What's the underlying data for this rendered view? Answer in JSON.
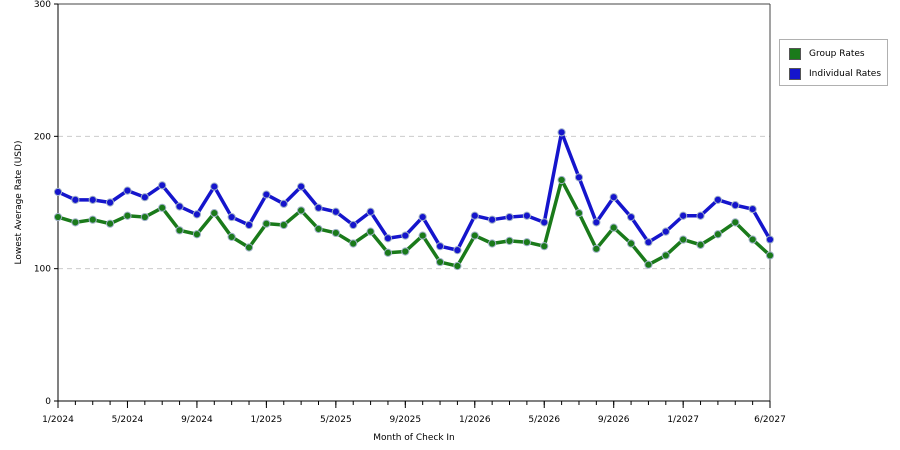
{
  "chart_data": {
    "type": "line",
    "title": "",
    "xlabel": "Month of Check In",
    "ylabel": "Lowest Average Rate (USD)",
    "ylim": [
      0,
      300
    ],
    "yticks": [
      0,
      100,
      200,
      300
    ],
    "xticks": [
      "1/2024",
      "5/2024",
      "9/2024",
      "1/2025",
      "5/2025",
      "9/2025",
      "1/2026",
      "5/2026",
      "9/2026",
      "1/2027",
      "6/2027"
    ],
    "grid": "horizontal dashed",
    "legend_position": "right",
    "categories": [
      "1/2024",
      "2/2024",
      "3/2024",
      "4/2024",
      "5/2024",
      "6/2024",
      "7/2024",
      "8/2024",
      "9/2024",
      "10/2024",
      "11/2024",
      "12/2024",
      "1/2025",
      "2/2025",
      "3/2025",
      "4/2025",
      "5/2025",
      "6/2025",
      "7/2025",
      "8/2025",
      "9/2025",
      "10/2025",
      "11/2025",
      "12/2025",
      "1/2026",
      "2/2026",
      "3/2026",
      "4/2026",
      "5/2026",
      "6/2026",
      "7/2026",
      "8/2026",
      "9/2026",
      "10/2026",
      "11/2026",
      "12/2026",
      "1/2027",
      "2/2027",
      "3/2027",
      "4/2027",
      "5/2027",
      "6/2027"
    ],
    "series": [
      {
        "name": "Group Rates",
        "color": "#1a7a1a",
        "values": [
          139,
          135,
          137,
          134,
          140,
          139,
          146,
          129,
          126,
          142,
          124,
          116,
          134,
          133,
          144,
          130,
          127,
          119,
          128,
          112,
          113,
          125,
          105,
          102,
          125,
          119,
          121,
          120,
          117,
          167,
          142,
          115,
          131,
          119,
          103,
          110,
          122,
          118,
          126,
          135,
          122,
          110
        ]
      },
      {
        "name": "Individual Rates",
        "color": "#1515cc",
        "values": [
          158,
          152,
          152,
          150,
          159,
          154,
          163,
          147,
          141,
          162,
          139,
          133,
          156,
          149,
          162,
          146,
          143,
          133,
          143,
          123,
          125,
          139,
          117,
          114,
          140,
          137,
          139,
          140,
          135,
          203,
          169,
          135,
          154,
          139,
          120,
          128,
          140,
          140,
          152,
          148,
          145,
          122
        ]
      }
    ]
  }
}
